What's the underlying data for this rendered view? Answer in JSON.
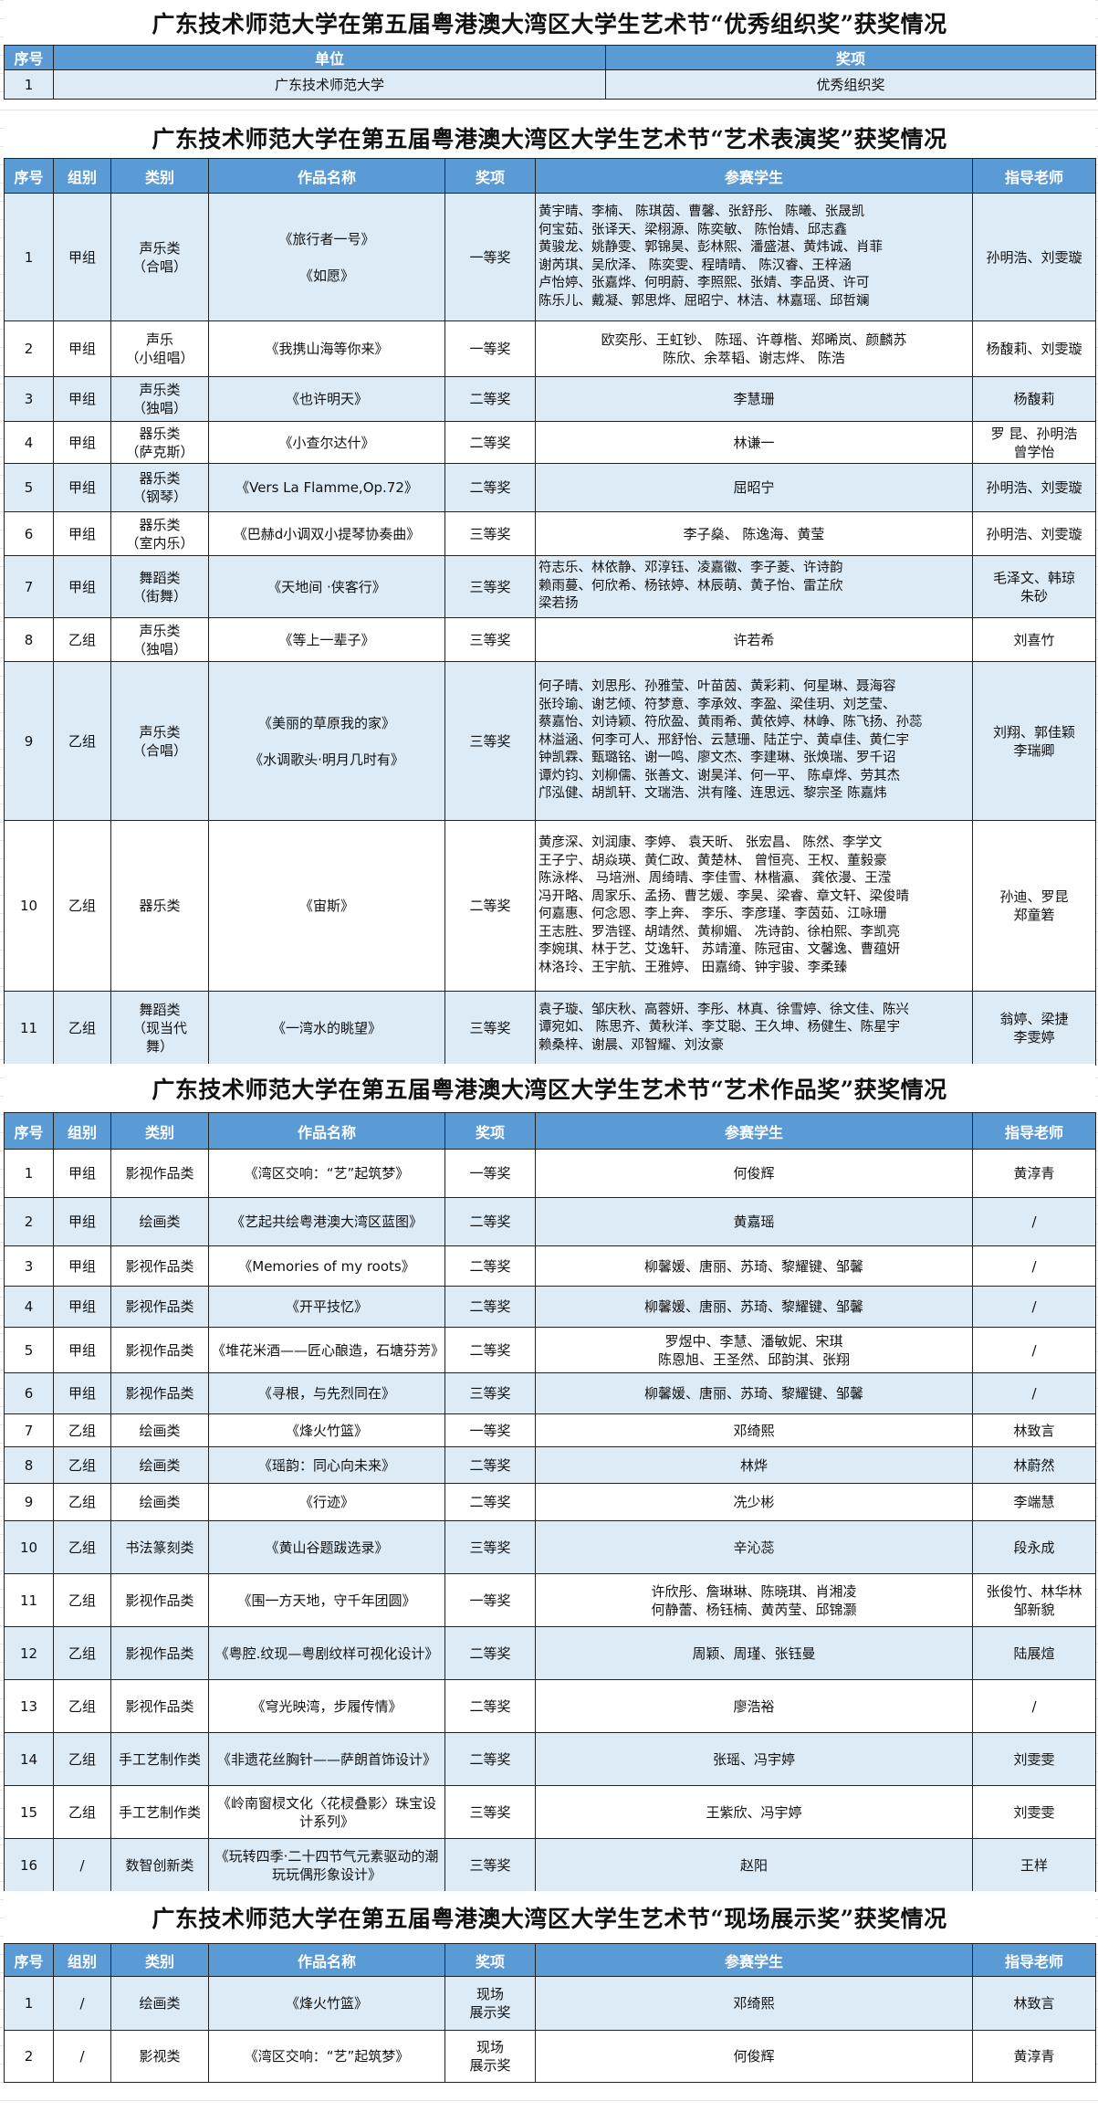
{
  "colors": {
    "header_bg": "#5b9bd5",
    "row_alt": "#ddebf7",
    "header_text": "#ffffff"
  },
  "sections": [
    {
      "title": "广东技术师范大学在第五届粤港澳大湾区大学生艺术节“优秀组织奖”获奖情况",
      "headers": [
        "序号",
        "单位",
        "奖项"
      ],
      "rows": [
        [
          "1",
          "广东技术师范大学",
          "优秀组织奖"
        ]
      ]
    },
    {
      "title": "广东技术师范大学在第五届粤港澳大湾区大学生艺术节“艺术表演奖”获奖情况",
      "headers": [
        "序号",
        "组别",
        "类别",
        "作品名称",
        "奖项",
        "参赛学生",
        "指导老师"
      ],
      "rows": [
        [
          "1",
          "甲组",
          "声乐类\n（合唱）",
          "《旅行者一号》\n\n《如愿》",
          "一等奖",
          "黄宇晴、李楠、 陈琪茵、曹馨、张舒彤、 陈曦、张晟凯\n何宝茹、张译天、梁栩源、陈奕敏、 陈怡婧、邱志鑫\n黄骏龙、姚静雯、郭锦昊、彭林熙、潘盛湛、黄炜诚、肖菲\n谢芮琪、吴欣泽、 陈奕雯、程晴晴、 陈汉睿、王梓涵\n卢怡婷、张嘉烨、何明蔚、李照熙、张婧、李品贤、许可\n陈乐儿、戴凝、郭思烨、屈昭宁、林洁、林嘉瑶、邱哲斓",
          "孙明浩、刘雯璇"
        ],
        [
          "2",
          "甲组",
          "声乐\n（小组唱）",
          "《我携山海等你来》",
          "一等奖",
          "欧奕彤、王虹钞、 陈瑶、许尊楷、郑晞岚、颜麟苏\n陈欣、余萃韬、谢志烨、 陈浩",
          "杨馥莉、刘雯璇"
        ],
        [
          "3",
          "甲组",
          "声乐类\n（独唱）",
          "《也许明天》",
          "二等奖",
          "李慧珊",
          "杨馥莉"
        ],
        [
          "4",
          "甲组",
          "器乐类\n（萨克斯）",
          "《小查尔达什》",
          "二等奖",
          "林谦一",
          "罗 昆、孙明浩\n曾学怡"
        ],
        [
          "5",
          "甲组",
          "器乐类\n（钢琴）",
          "《Vers La Flamme,Op.72》",
          "二等奖",
          "屈昭宁",
          "孙明浩、刘雯璇"
        ],
        [
          "6",
          "甲组",
          "器乐类\n（室内乐）",
          "《巴赫d小调双小提琴协奏曲》",
          "三等奖",
          "李子燊、 陈逸海、黄莹",
          "孙明浩、刘雯璇"
        ],
        [
          "7",
          "甲组",
          "舞蹈类\n（街舞）",
          "《天地间 ·侠客行》",
          "三等奖",
          "符志乐、林依静、邓淳钰、凌嘉徽、李子菱、许诗韵\n赖雨蔓、何欣希、杨铱婷、林辰萌、黄子怡、雷芷欣\n梁若扬",
          "毛泽文、韩琼\n朱砂"
        ],
        [
          "8",
          "乙组",
          "声乐类\n（独唱）",
          "《等上一辈子》",
          "三等奖",
          "许若希",
          "刘喜竹"
        ],
        [
          "9",
          "乙组",
          "声乐类\n（合唱）",
          "《美丽的草原我的家》\n\n《水调歌头·明月几时有》",
          "三等奖",
          "何子晴、刘思彤、孙雅莹、叶苗茵、黄彩莉、何星琳、聂海容\n张玲瑜、谢艺倾、符梦意、李承效、李盈、梁佳玥、刘芝莹、\n蔡嘉怡、刘诗颖、符欣盈、黄雨希、黄依婷、林峥、陈飞扬、孙蕊\n林溢涵、何李可人、邢舒怡、云慧珊、陆芷宁、黄卓佳、黄仁宇\n钟凯霖、甄璐铭、谢一鸣、廖文杰、李建琳、张焕瑞、罗千诏\n谭灼钧、刘柳儒、张善文、谢昊洋、何一平、 陈卓烨、劳其杰\n邝泓健、胡凯轩、文瑞浩、洪有隆、连思远、黎宗圣 陈嘉炜",
          "刘翔、郭佳颖\n李瑞卿"
        ],
        [
          "10",
          "乙组",
          "器乐类",
          "《宙斯》",
          "二等奖",
          "黄彦深、刘润康、李婷、 袁天昕、 张宏昌、 陈然、李学文\n王子宁、胡焱瑛、黄仁政、黄楚林、 曾恒亮、王权、董毅豪\n陈泳桦、 马培洲、周绮晴、李佳雪、林楷瀛、 龚依漫、王滢\n冯开略、周家乐、孟扬、曹艺媛、李昊、梁睿、章文轩、梁俊晴\n何嘉惠、何念恩、李上奔、 李乐、李彦瑾、李茵茹、江咏珊\n王志胜、罗浩铿、胡靖然、黄柳媚、 冼诗韵、徐柏熙、李凯亮\n李婉琪、林于艺、艾逸轩、 苏靖潼、陈冠宙、文馨逸、曹蕴妍\n林洛玲、王宇航、王雅婷、 田嘉绮、钟宇骏、李柔臻",
          "孙迪、罗昆\n郑童箬"
        ],
        [
          "11",
          "乙组",
          "舞蹈类\n（现当代\n舞）",
          "《一湾水的眺望》",
          "三等奖",
          "袁子璇、邹庆秋、高蓉妍、李彤、林真、徐雪婷、徐文佳、陈兴\n谭宛如、 陈思齐、黄秋洋、李艾聪、王久坤、杨健生、陈星宇\n赖桑梓、谢晨、邓智耀、刘汝豪",
          "翁婷、梁捷\n李雯婷"
        ]
      ]
    },
    {
      "title": "广东技术师范大学在第五届粤港澳大湾区大学生艺术节“艺术作品奖”获奖情况",
      "headers": [
        "序号",
        "组别",
        "类别",
        "作品名称",
        "奖项",
        "参赛学生",
        "指导老师"
      ],
      "rows": [
        [
          "1",
          "甲组",
          "影视作品类",
          "《湾区交响：“艺”起筑梦》",
          "一等奖",
          "何俊辉",
          "黄淳青"
        ],
        [
          "2",
          "甲组",
          "绘画类",
          "《艺起共绘粤港澳大湾区蓝图》",
          "二等奖",
          "黄嘉瑶",
          "/"
        ],
        [
          "3",
          "甲组",
          "影视作品类",
          "《Memories of my roots》",
          "二等奖",
          "柳馨媛、唐丽、苏琦、黎耀键、邹馨",
          "/"
        ],
        [
          "4",
          "甲组",
          "影视作品类",
          "《开平技忆》",
          "二等奖",
          "柳馨媛、唐丽、苏琦、黎耀键、邹馨",
          "/"
        ],
        [
          "5",
          "甲组",
          "影视作品类",
          "《堆花米酒——匠心酿造，石塘芬芳》",
          "二等奖",
          "罗煜中、李慧、潘敏妮、宋琪\n陈恩旭、王圣然、邱韵淇、张翔",
          "/"
        ],
        [
          "6",
          "甲组",
          "影视作品类",
          "《寻根，与先烈同在》",
          "三等奖",
          "柳馨媛、唐丽、苏琦、黎耀键、邹馨",
          "/"
        ],
        [
          "7",
          "乙组",
          "绘画类",
          "《烽火竹篮》",
          "一等奖",
          "邓绮熙",
          "林致言"
        ],
        [
          "8",
          "乙组",
          "绘画类",
          "《瑶韵：同心向未来》",
          "二等奖",
          "林烨",
          "林蔚然"
        ],
        [
          "9",
          "乙组",
          "绘画类",
          "《行迹》",
          "二等奖",
          "冼少彬",
          "李端慧"
        ],
        [
          "10",
          "乙组",
          "书法篆刻类",
          "《黄山谷题跋选录》",
          "三等奖",
          "辛沁蕊",
          "段永成"
        ],
        [
          "11",
          "乙组",
          "影视作品类",
          "《围一方天地，守千年团圆》",
          "一等奖",
          "许欣彤、詹琳琳、陈晓琪、肖湘凌\n何静蕾、杨钰楠、黄芮莹、邱锦灏",
          "张俊竹、林华林\n邹新貌"
        ],
        [
          "12",
          "乙组",
          "影视作品类",
          "《粤腔.纹现—粤剧纹样可视化设计》",
          "二等奖",
          "周颖、周瑾、张钰曼",
          "陆展煊"
        ],
        [
          "13",
          "乙组",
          "影视作品类",
          "《穹光映湾，步履传情》",
          "二等奖",
          "廖浩裕",
          "/"
        ],
        [
          "14",
          "乙组",
          "手工艺制作类",
          "《非遗花丝胸针——萨朗首饰设计》",
          "二等奖",
          "张瑶、冯宇婷",
          "刘雯雯"
        ],
        [
          "15",
          "乙组",
          "手工艺制作类",
          "《岭南窗棂文化〈花棂叠影〉珠宝设计系列》",
          "三等奖",
          "王紫欣、冯宇婷",
          "刘雯雯"
        ],
        [
          "16",
          "/",
          "数智创新类",
          "《玩转四季·二十四节气元素驱动的潮玩玩偶形象设计》",
          "三等奖",
          "赵阳",
          "王样"
        ]
      ]
    },
    {
      "title": "广东技术师范大学在第五届粤港澳大湾区大学生艺术节“现场展示奖”获奖情况",
      "headers": [
        "序号",
        "组别",
        "类别",
        "作品名称",
        "奖项",
        "参赛学生",
        "指导老师"
      ],
      "rows": [
        [
          "1",
          "/",
          "绘画类",
          "《烽火竹篮》",
          "现场\n展示奖",
          "邓绮熙",
          "林致言"
        ],
        [
          "2",
          "/",
          "影视类",
          "《湾区交响：“艺”起筑梦》",
          "现场\n展示奖",
          "何俊辉",
          "黄淳青"
        ]
      ]
    }
  ]
}
